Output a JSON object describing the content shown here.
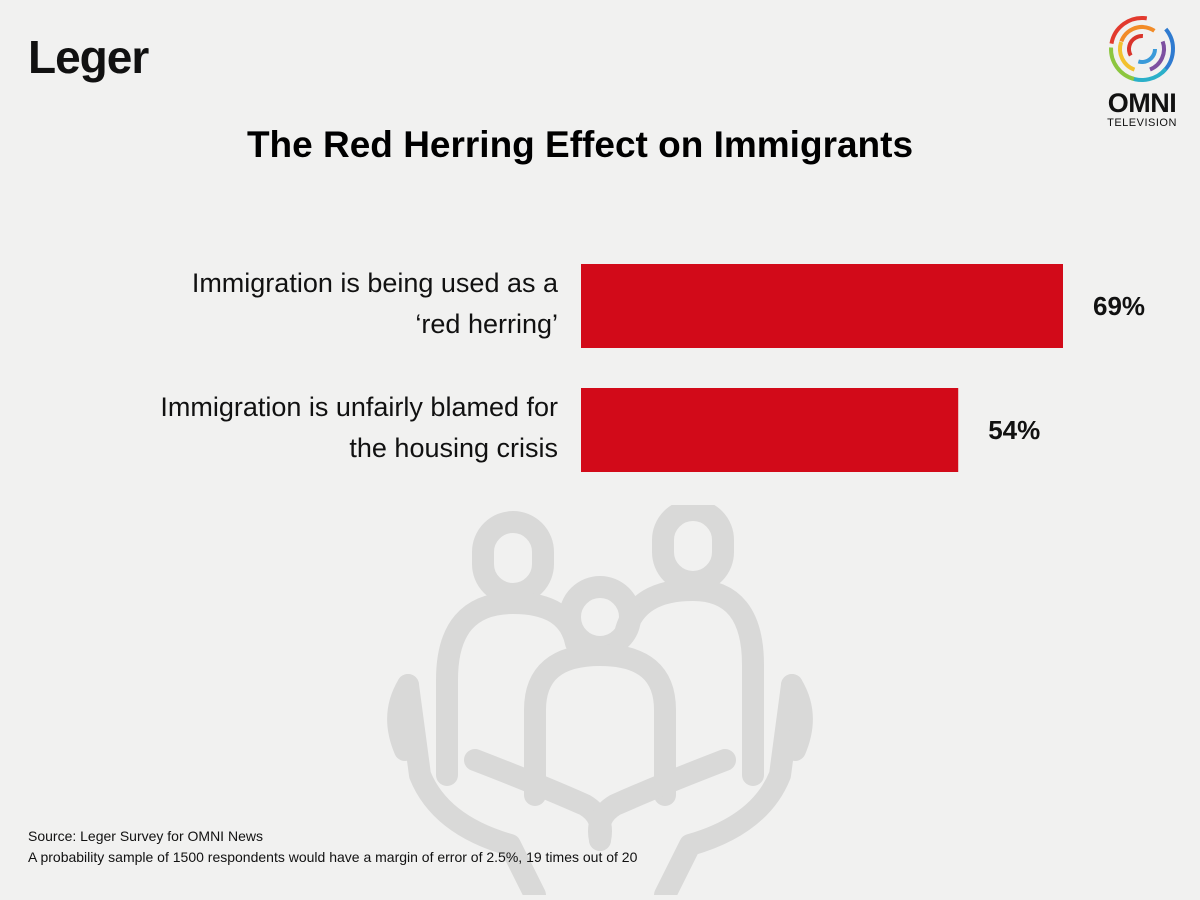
{
  "brand": {
    "leger_logo": "Leger",
    "omni_logo": "OMNI",
    "omni_sub": "TELEVISION"
  },
  "colors": {
    "bar": "#d20a19",
    "background": "#f1f1f0",
    "illustration": "#d9d9d8"
  },
  "chart_data": {
    "type": "bar",
    "orientation": "horizontal",
    "title": "The Red Herring Effect on Immigrants",
    "categories": [
      [
        "Immigration is being used as a",
        "‘red herring’"
      ],
      [
        "Immigration is unfairly blamed for",
        "the housing crisis"
      ]
    ],
    "values": [
      69,
      54
    ],
    "value_labels": [
      "69%",
      "54%"
    ],
    "unit": "%",
    "xlim": [
      0,
      69
    ],
    "grid": false,
    "legend": "none"
  },
  "footer": {
    "source": "Source: Leger Survey for OMNI News",
    "note": "A probability sample of 1500 respondents would have a margin of error of 2.5%, 19 times out of 20"
  },
  "illustration_icon": "family-in-hands-icon"
}
